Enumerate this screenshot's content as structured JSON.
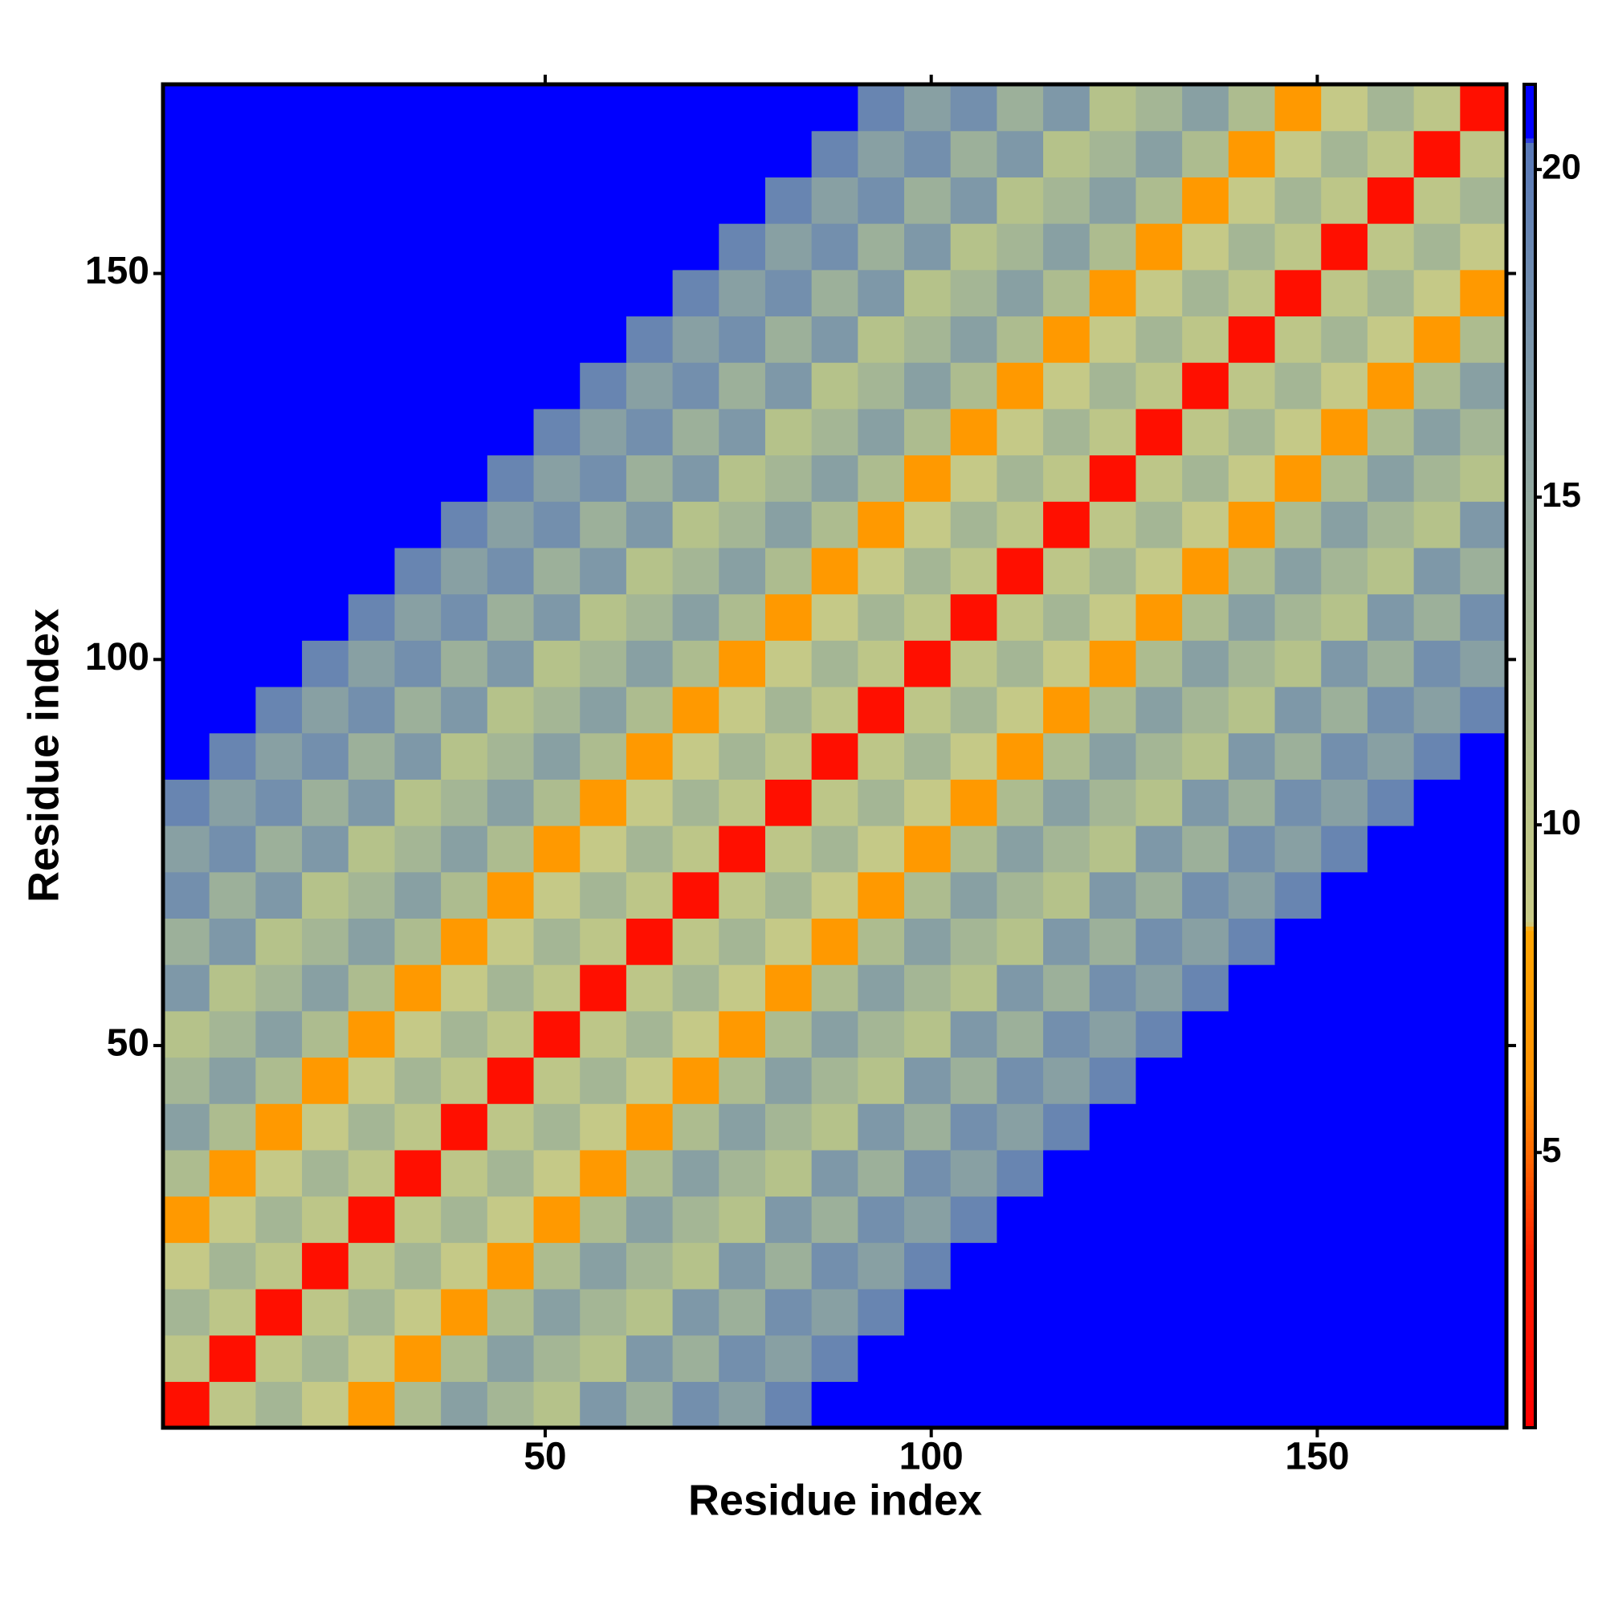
{
  "chart_data": {
    "type": "heatmap",
    "x_label": "Residue index",
    "y_label": "Residue index",
    "x": [
      3.5,
      9.5,
      15.5,
      21.5,
      27.5,
      33.5,
      39.5,
      45.5,
      51.5,
      57.5,
      63.5,
      69.5,
      75.5,
      81.5,
      87.5,
      93.5,
      99.5,
      105.5,
      111.5,
      117.5,
      123.5,
      129.5,
      135.5,
      141.5,
      147.5,
      153.5,
      159.5,
      165.5,
      171.5
    ],
    "y": [
      3.5,
      9.5,
      15.5,
      21.5,
      27.5,
      33.5,
      39.5,
      45.5,
      51.5,
      57.5,
      63.5,
      69.5,
      75.5,
      81.5,
      87.5,
      93.5,
      99.5,
      105.5,
      111.5,
      117.5,
      123.5,
      129.5,
      135.5,
      141.5,
      147.5,
      153.5,
      159.5,
      165.5,
      171.5
    ],
    "z": [
      [
        2,
        10,
        13,
        9,
        7,
        12,
        16,
        13,
        11,
        17,
        14,
        18,
        16,
        19,
        21,
        21,
        21,
        21,
        21,
        21,
        21,
        21,
        21,
        21,
        21,
        21,
        21,
        21,
        21
      ],
      [
        10,
        2,
        10,
        13,
        9,
        7,
        12,
        16,
        13,
        11,
        17,
        14,
        18,
        16,
        19,
        21,
        21,
        21,
        21,
        21,
        21,
        21,
        21,
        21,
        21,
        21,
        21,
        21,
        21
      ],
      [
        13,
        10,
        2,
        10,
        13,
        9,
        7,
        12,
        16,
        13,
        11,
        17,
        14,
        18,
        16,
        19,
        21,
        21,
        21,
        21,
        21,
        21,
        21,
        21,
        21,
        21,
        21,
        21,
        21
      ],
      [
        9,
        13,
        10,
        2,
        10,
        13,
        9,
        7,
        12,
        16,
        13,
        11,
        17,
        14,
        18,
        16,
        19,
        21,
        21,
        21,
        21,
        21,
        21,
        21,
        21,
        21,
        21,
        21,
        21
      ],
      [
        7,
        9,
        13,
        10,
        2,
        10,
        13,
        9,
        7,
        12,
        16,
        13,
        11,
        17,
        14,
        18,
        16,
        19,
        21,
        21,
        21,
        21,
        21,
        21,
        21,
        21,
        21,
        21,
        21
      ],
      [
        12,
        7,
        9,
        13,
        10,
        2,
        10,
        13,
        9,
        7,
        12,
        16,
        13,
        11,
        17,
        14,
        18,
        16,
        19,
        21,
        21,
        21,
        21,
        21,
        21,
        21,
        21,
        21,
        21
      ],
      [
        16,
        12,
        7,
        9,
        13,
        10,
        2,
        10,
        13,
        9,
        7,
        12,
        16,
        13,
        11,
        17,
        14,
        18,
        16,
        19,
        21,
        21,
        21,
        21,
        21,
        21,
        21,
        21,
        21
      ],
      [
        13,
        16,
        12,
        7,
        9,
        13,
        10,
        2,
        10,
        13,
        9,
        7,
        12,
        16,
        13,
        11,
        17,
        14,
        18,
        16,
        19,
        21,
        21,
        21,
        21,
        21,
        21,
        21,
        21
      ],
      [
        11,
        13,
        16,
        12,
        7,
        9,
        13,
        10,
        2,
        10,
        13,
        9,
        7,
        12,
        16,
        13,
        11,
        17,
        14,
        18,
        16,
        19,
        21,
        21,
        21,
        21,
        21,
        21,
        21
      ],
      [
        17,
        11,
        13,
        16,
        12,
        7,
        9,
        13,
        10,
        2,
        10,
        13,
        9,
        7,
        12,
        16,
        13,
        11,
        17,
        14,
        18,
        16,
        19,
        21,
        21,
        21,
        21,
        21,
        21
      ],
      [
        14,
        17,
        11,
        13,
        16,
        12,
        7,
        9,
        13,
        10,
        2,
        10,
        13,
        9,
        7,
        12,
        16,
        13,
        11,
        17,
        14,
        18,
        16,
        19,
        21,
        21,
        21,
        21,
        21
      ],
      [
        18,
        14,
        17,
        11,
        13,
        16,
        12,
        7,
        9,
        13,
        10,
        2,
        10,
        13,
        9,
        7,
        12,
        16,
        13,
        11,
        17,
        14,
        18,
        16,
        19,
        21,
        21,
        21,
        21
      ],
      [
        16,
        18,
        14,
        17,
        11,
        13,
        16,
        12,
        7,
        9,
        13,
        10,
        2,
        10,
        13,
        9,
        7,
        12,
        16,
        13,
        11,
        17,
        14,
        18,
        16,
        19,
        21,
        21,
        21
      ],
      [
        19,
        16,
        18,
        14,
        17,
        11,
        13,
        16,
        12,
        7,
        9,
        13,
        10,
        2,
        10,
        13,
        9,
        7,
        12,
        16,
        13,
        11,
        17,
        14,
        18,
        16,
        19,
        21,
        21
      ],
      [
        21,
        19,
        16,
        18,
        14,
        17,
        11,
        13,
        16,
        12,
        7,
        9,
        13,
        10,
        2,
        10,
        13,
        9,
        7,
        12,
        16,
        13,
        11,
        17,
        14,
        18,
        16,
        19,
        21
      ],
      [
        21,
        21,
        19,
        16,
        18,
        14,
        17,
        11,
        13,
        16,
        12,
        7,
        9,
        13,
        10,
        2,
        10,
        13,
        9,
        7,
        12,
        16,
        13,
        11,
        17,
        14,
        18,
        16,
        19
      ],
      [
        21,
        21,
        21,
        19,
        16,
        18,
        14,
        17,
        11,
        13,
        16,
        12,
        7,
        9,
        13,
        10,
        2,
        10,
        13,
        9,
        7,
        12,
        16,
        13,
        11,
        17,
        14,
        18,
        16
      ],
      [
        21,
        21,
        21,
        21,
        19,
        16,
        18,
        14,
        17,
        11,
        13,
        16,
        12,
        7,
        9,
        13,
        10,
        2,
        10,
        13,
        9,
        7,
        12,
        16,
        13,
        11,
        17,
        14,
        18
      ],
      [
        21,
        21,
        21,
        21,
        21,
        19,
        16,
        18,
        14,
        17,
        11,
        13,
        16,
        12,
        7,
        9,
        13,
        10,
        2,
        10,
        13,
        9,
        7,
        12,
        16,
        13,
        11,
        17,
        14
      ],
      [
        21,
        21,
        21,
        21,
        21,
        21,
        19,
        16,
        18,
        14,
        17,
        11,
        13,
        16,
        12,
        7,
        9,
        13,
        10,
        2,
        10,
        13,
        9,
        7,
        12,
        16,
        13,
        11,
        17
      ],
      [
        21,
        21,
        21,
        21,
        21,
        21,
        21,
        19,
        16,
        18,
        14,
        17,
        11,
        13,
        16,
        12,
        7,
        9,
        13,
        10,
        2,
        10,
        13,
        9,
        7,
        12,
        16,
        13,
        11
      ],
      [
        21,
        21,
        21,
        21,
        21,
        21,
        21,
        21,
        19,
        16,
        18,
        14,
        17,
        11,
        13,
        16,
        12,
        7,
        9,
        13,
        10,
        2,
        10,
        13,
        9,
        7,
        12,
        16,
        13
      ],
      [
        21,
        21,
        21,
        21,
        21,
        21,
        21,
        21,
        21,
        19,
        16,
        18,
        14,
        17,
        11,
        13,
        16,
        12,
        7,
        9,
        13,
        10,
        2,
        10,
        13,
        9,
        7,
        12,
        16
      ],
      [
        21,
        21,
        21,
        21,
        21,
        21,
        21,
        21,
        21,
        21,
        19,
        16,
        18,
        14,
        17,
        11,
        13,
        16,
        12,
        7,
        9,
        13,
        10,
        2,
        10,
        13,
        9,
        7,
        12
      ],
      [
        21,
        21,
        21,
        21,
        21,
        21,
        21,
        21,
        21,
        21,
        21,
        19,
        16,
        18,
        14,
        17,
        11,
        13,
        16,
        12,
        7,
        9,
        13,
        10,
        2,
        10,
        13,
        9,
        7
      ],
      [
        21,
        21,
        21,
        21,
        21,
        21,
        21,
        21,
        21,
        21,
        21,
        21,
        19,
        16,
        18,
        14,
        17,
        11,
        13,
        16,
        12,
        7,
        9,
        13,
        10,
        2,
        10,
        13,
        9
      ],
      [
        21,
        21,
        21,
        21,
        21,
        21,
        21,
        21,
        21,
        21,
        21,
        21,
        21,
        19,
        16,
        18,
        14,
        17,
        11,
        13,
        16,
        12,
        7,
        9,
        13,
        10,
        2,
        10,
        13
      ],
      [
        21,
        21,
        21,
        21,
        21,
        21,
        21,
        21,
        21,
        21,
        21,
        21,
        21,
        21,
        19,
        16,
        18,
        14,
        17,
        11,
        13,
        16,
        12,
        7,
        9,
        13,
        10,
        2,
        10
      ],
      [
        21,
        21,
        21,
        21,
        21,
        21,
        21,
        21,
        21,
        21,
        21,
        21,
        21,
        21,
        21,
        19,
        16,
        18,
        14,
        17,
        11,
        13,
        16,
        12,
        7,
        9,
        13,
        10,
        2
      ]
    ],
    "xlim": [
      0.5,
      174.5
    ],
    "ylim": [
      0.5,
      174.5
    ],
    "xticks": [
      50,
      100,
      150
    ],
    "yticks": [
      50,
      100,
      150
    ],
    "zlim": [
      0.8,
      21.3
    ],
    "colorbar_ticks": [
      5,
      10,
      15,
      20
    ],
    "colorscale": [
      [
        0.8,
        "#ff0000"
      ],
      [
        3.5,
        "#ff2200"
      ],
      [
        5,
        "#ff6a00"
      ],
      [
        6,
        "#ff9000"
      ],
      [
        8.4,
        "#ffa500"
      ],
      [
        8.5,
        "#c9cb86"
      ],
      [
        11,
        "#b5c28a"
      ],
      [
        14,
        "#9cb09a"
      ],
      [
        17,
        "#7e98a8"
      ],
      [
        20.4,
        "#5878b8"
      ],
      [
        20.5,
        "#0000ff"
      ],
      [
        21.3,
        "#0000ff"
      ]
    ]
  }
}
